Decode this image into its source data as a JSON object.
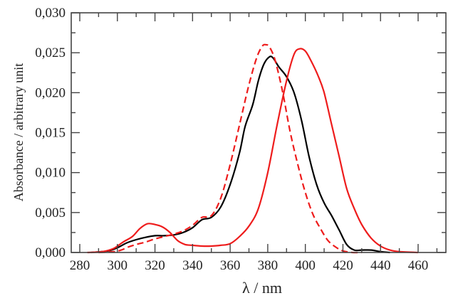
{
  "chart_data": {
    "type": "line",
    "title": "",
    "xlabel": "λ  /  nm",
    "ylabel": "Absorbance  /  arbitrary unit",
    "xlim": [
      275.5,
      474.8
    ],
    "ylim": [
      0.0,
      0.03
    ],
    "grid": false,
    "legend": null,
    "x_ticks": [
      280,
      300,
      320,
      340,
      360,
      380,
      400,
      420,
      440,
      460
    ],
    "x_tick_labels": [
      "280",
      "300",
      "320",
      "340",
      "360",
      "380",
      "400",
      "420",
      "440",
      "460"
    ],
    "y_ticks": [
      0.0,
      0.005,
      0.01,
      0.015,
      0.02,
      0.025,
      0.03
    ],
    "y_tick_labels": [
      "0,000",
      "0,005",
      "0,010",
      "0,015",
      "0,020",
      "0,025",
      "0,030"
    ],
    "series": [
      {
        "name": "black solid",
        "color": "#000000",
        "style": "solid",
        "x": [
          286,
          295,
          300,
          305,
          310,
          315,
          320,
          325,
          330,
          335,
          340,
          345,
          350,
          355,
          360,
          365,
          368,
          372,
          375,
          378,
          381,
          383,
          386,
          390,
          394,
          398,
          402,
          406,
          410,
          414,
          418,
          422,
          426,
          430,
          435,
          440,
          445
        ],
        "y": [
          0.0,
          0.0002,
          0.0006,
          0.0012,
          0.0016,
          0.0019,
          0.0021,
          0.0021,
          0.0022,
          0.0025,
          0.0031,
          0.0041,
          0.0044,
          0.0057,
          0.0085,
          0.0125,
          0.0158,
          0.0185,
          0.0215,
          0.0236,
          0.0245,
          0.0243,
          0.0232,
          0.022,
          0.02,
          0.0165,
          0.012,
          0.0085,
          0.0062,
          0.0046,
          0.0028,
          0.001,
          0.0003,
          0.0003,
          0.0003,
          0.0001,
          0.0
        ]
      },
      {
        "name": "red dashed",
        "color": "#ee1c1c",
        "style": "dashed",
        "x": [
          290,
          298,
          302,
          306,
          310,
          315,
          320,
          325,
          330,
          335,
          340,
          345,
          350,
          355,
          360,
          365,
          370,
          374,
          377,
          379,
          381,
          384,
          388,
          392,
          396,
          400,
          404,
          408,
          412,
          416,
          420,
          425,
          430
        ],
        "y": [
          0.0,
          0.0001,
          0.0003,
          0.0007,
          0.001,
          0.0013,
          0.0017,
          0.002,
          0.0023,
          0.0027,
          0.0034,
          0.0044,
          0.0046,
          0.0068,
          0.011,
          0.016,
          0.021,
          0.0243,
          0.0258,
          0.026,
          0.0257,
          0.024,
          0.02,
          0.015,
          0.011,
          0.0075,
          0.0048,
          0.003,
          0.0015,
          0.0007,
          0.0002,
          0.0,
          0.0
        ]
      },
      {
        "name": "red solid",
        "color": "#ee1c1c",
        "style": "solid",
        "x": [
          284,
          292,
          298,
          303,
          308,
          312,
          316,
          320,
          324,
          328,
          332,
          336,
          340,
          345,
          350,
          355,
          360,
          365,
          370,
          375,
          380,
          385,
          390,
          394,
          397,
          400,
          403,
          407,
          410,
          414,
          418,
          422,
          426,
          430,
          435,
          440,
          445,
          450,
          460
        ],
        "y": [
          0.0,
          0.0001,
          0.0005,
          0.0013,
          0.002,
          0.003,
          0.0036,
          0.0035,
          0.0032,
          0.0025,
          0.0015,
          0.001,
          0.0009,
          0.0008,
          0.0008,
          0.0009,
          0.0011,
          0.002,
          0.0033,
          0.0055,
          0.01,
          0.016,
          0.0215,
          0.0248,
          0.0255,
          0.0252,
          0.024,
          0.022,
          0.02,
          0.016,
          0.012,
          0.008,
          0.0055,
          0.0035,
          0.0018,
          0.0008,
          0.0003,
          0.0001,
          0.0
        ]
      }
    ]
  }
}
